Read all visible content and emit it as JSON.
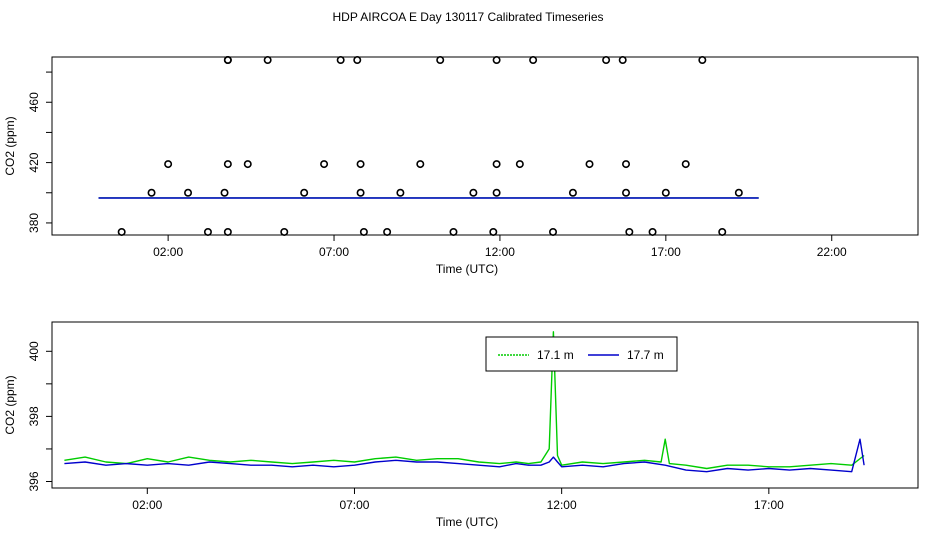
{
  "page_title": "HDP AIRCOA E  Day 130117  Calibrated Timeseries",
  "colors": {
    "green": "#00cc00",
    "blue": "#0000cc",
    "axis": "#000000"
  },
  "chart_data": [
    {
      "type": "scatter",
      "title": "",
      "xlabel": "Time (UTC)",
      "ylabel": "CO2 (ppm)",
      "x_unit": "hours UTC",
      "xlim": [
        -1.5,
        24.6
      ],
      "ylim": [
        372,
        490
      ],
      "x_ticks": [
        2,
        7,
        12,
        17,
        22
      ],
      "x_tick_labels": [
        "02:00",
        "07:00",
        "12:00",
        "17:00",
        "22:00"
      ],
      "y_ticks": [
        380,
        420,
        460
      ],
      "y_tick_labels": [
        "380",
        "420",
        "460"
      ],
      "calibration_points": {
        "x": [
          0.6,
          1.5,
          2.0,
          2.6,
          3.2,
          3.7,
          3.8,
          3.8,
          3.8,
          3.8,
          4.4,
          5.0,
          5.5,
          6.1,
          6.7,
          7.2,
          7.7,
          7.8,
          7.8,
          7.9,
          8.6,
          9.0,
          9.6,
          10.2,
          10.6,
          11.2,
          11.8,
          11.9,
          11.9,
          11.9,
          12.6,
          13.0,
          13.6,
          14.2,
          14.7,
          15.2,
          15.7,
          15.8,
          15.8,
          15.9,
          16.6,
          17.0,
          17.6,
          18.1,
          18.7,
          19.2
        ],
        "y": [
          374,
          400,
          419,
          400,
          374,
          400,
          374,
          419,
          488,
          488,
          419,
          488,
          374,
          400,
          419,
          488,
          488,
          419,
          400,
          374,
          374,
          400,
          419,
          488,
          374,
          400,
          374,
          400,
          419,
          488,
          419,
          488,
          374,
          400,
          419,
          488,
          488,
          419,
          400,
          374,
          374,
          400,
          419,
          488,
          374,
          400
        ]
      },
      "series": [
        {
          "name": "",
          "color": "#00cc00",
          "x": [
            -0.1,
            19.8
          ],
          "values": [
            396.6,
            396.6
          ]
        },
        {
          "name": "",
          "color": "#0000cc",
          "x": [
            -0.1,
            19.8
          ],
          "values": [
            396.5,
            396.5
          ]
        }
      ]
    },
    {
      "type": "line",
      "title": "",
      "xlabel": "Time (UTC)",
      "ylabel": "CO2 (ppm)",
      "x_unit": "hours UTC",
      "xlim": [
        -0.3,
        20.6
      ],
      "ylim": [
        395.8,
        400.9
      ],
      "x_ticks": [
        2,
        7,
        12,
        17
      ],
      "x_tick_labels": [
        "02:00",
        "07:00",
        "12:00",
        "17:00"
      ],
      "y_ticks": [
        396,
        398,
        400
      ],
      "y_tick_labels": [
        "396",
        "398",
        "400"
      ],
      "legend": {
        "placement": "top-center",
        "entries": [
          "17.1 m",
          "17.7 m"
        ]
      },
      "series": [
        {
          "name": "17.1 m",
          "color": "#00cc00",
          "x": [
            0.0,
            0.5,
            1.0,
            1.5,
            2.0,
            2.5,
            3.0,
            3.5,
            4.0,
            4.5,
            5.0,
            5.5,
            6.0,
            6.5,
            7.0,
            7.5,
            8.0,
            8.5,
            9.0,
            9.5,
            10.0,
            10.5,
            10.9,
            11.2,
            11.5,
            11.7,
            11.8,
            11.9,
            12.0,
            12.5,
            13.0,
            13.5,
            14.0,
            14.4,
            14.5,
            14.6,
            15.0,
            15.5,
            16.0,
            16.5,
            17.0,
            17.5,
            18.0,
            18.5,
            19.0,
            19.3
          ],
          "values": [
            396.65,
            396.75,
            396.6,
            396.55,
            396.7,
            396.6,
            396.75,
            396.65,
            396.6,
            396.65,
            396.6,
            396.55,
            396.6,
            396.65,
            396.6,
            396.7,
            396.75,
            396.65,
            396.7,
            396.7,
            396.6,
            396.55,
            396.6,
            396.55,
            396.6,
            397.0,
            400.6,
            396.8,
            396.5,
            396.6,
            396.55,
            396.6,
            396.65,
            396.6,
            397.3,
            396.55,
            396.5,
            396.4,
            396.5,
            396.5,
            396.45,
            396.45,
            396.5,
            396.55,
            396.5,
            396.8
          ]
        },
        {
          "name": "17.7 m",
          "color": "#0000cc",
          "x": [
            0.0,
            0.5,
            1.0,
            1.5,
            2.0,
            2.5,
            3.0,
            3.5,
            4.0,
            4.5,
            5.0,
            5.5,
            6.0,
            6.5,
            7.0,
            7.5,
            8.0,
            8.5,
            9.0,
            9.5,
            10.0,
            10.5,
            10.9,
            11.2,
            11.5,
            11.7,
            11.8,
            11.9,
            12.0,
            12.5,
            13.0,
            13.5,
            14.0,
            14.5,
            15.0,
            15.5,
            16.0,
            16.5,
            17.0,
            17.5,
            18.0,
            18.5,
            19.0,
            19.2,
            19.3
          ],
          "values": [
            396.55,
            396.6,
            396.5,
            396.55,
            396.5,
            396.55,
            396.5,
            396.6,
            396.55,
            396.5,
            396.5,
            396.45,
            396.5,
            396.45,
            396.5,
            396.6,
            396.65,
            396.6,
            396.6,
            396.55,
            396.5,
            396.45,
            396.55,
            396.5,
            396.5,
            396.6,
            396.75,
            396.6,
            396.45,
            396.5,
            396.45,
            396.55,
            396.6,
            396.5,
            396.35,
            396.3,
            396.4,
            396.35,
            396.4,
            396.35,
            396.4,
            396.35,
            396.3,
            397.3,
            396.5
          ]
        }
      ]
    }
  ]
}
